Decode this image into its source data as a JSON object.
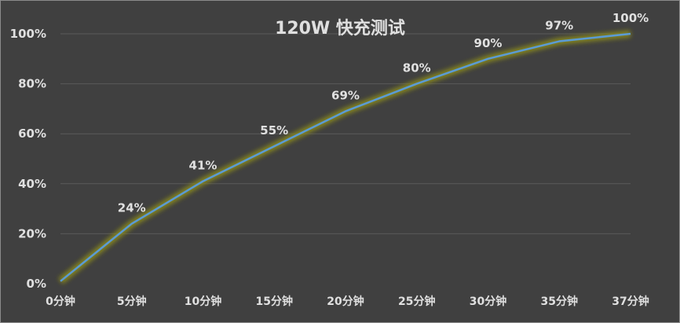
{
  "chart_data": {
    "type": "line",
    "title": "120W 快充测试",
    "xlabel": "",
    "ylabel": "",
    "categories": [
      "0分钟",
      "5分钟",
      "10分钟",
      "15分钟",
      "20分钟",
      "25分钟",
      "30分钟",
      "35分钟",
      "37分钟"
    ],
    "series": [
      {
        "values": [
          1,
          24,
          41,
          55,
          69,
          80,
          90,
          97,
          100
        ],
        "labels": [
          "",
          "24%",
          "41%",
          "55%",
          "69%",
          "80%",
          "90%",
          "97%",
          "100%"
        ]
      }
    ],
    "ylim": [
      0,
      100
    ],
    "yticks": [
      "0%",
      "20%",
      "40%",
      "60%",
      "80%",
      "100%"
    ],
    "grid": true,
    "legend": "none",
    "colors": {
      "background": "#404040",
      "line": "#5b9bd5",
      "glow": "#8a8a1a",
      "grid": "#5a5a5a",
      "text": "#e0e0e0"
    }
  }
}
